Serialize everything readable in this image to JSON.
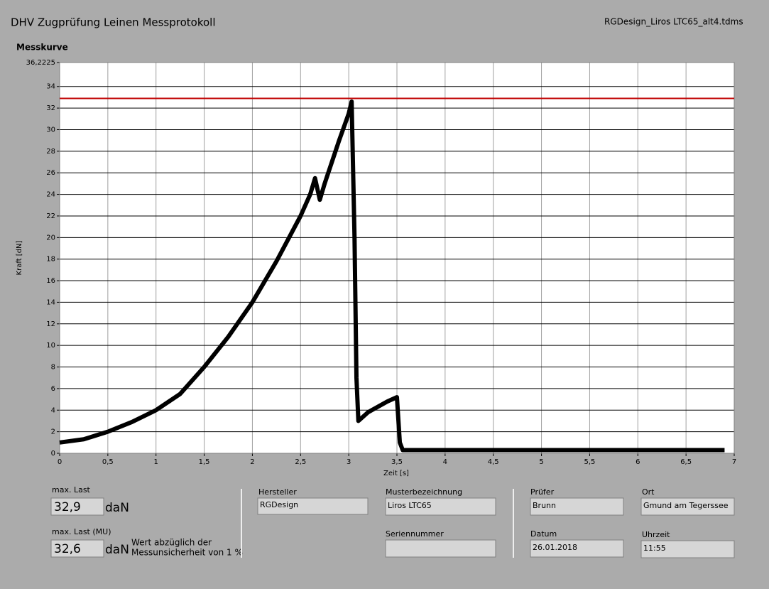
{
  "header": {
    "title": "DHV Zugprüfung Leinen Messprotokoll",
    "file": "RGDesign_Liros LTC65_alt4.tdms"
  },
  "chart_data": {
    "type": "line",
    "title": "Messkurve",
    "x_label": "Zeit [s]",
    "y_label": "Kraft [dN]",
    "xlim": [
      0,
      7
    ],
    "ylim": [
      0,
      36.2225
    ],
    "xticks": [
      0,
      {
        "value": 0.5,
        "label": "0,5"
      },
      1,
      {
        "value": 1.5,
        "label": "1,5"
      },
      2,
      {
        "value": 2.5,
        "label": "2,5"
      },
      3,
      {
        "value": 3.5,
        "label": "3,5"
      },
      4,
      {
        "value": 4.5,
        "label": "4,5"
      },
      5,
      {
        "value": 5.5,
        "label": "5,5"
      },
      6,
      {
        "value": 6.5,
        "label": "6,5"
      },
      7
    ],
    "yticks": [
      0,
      2,
      4,
      6,
      8,
      10,
      12,
      14,
      16,
      18,
      20,
      22,
      24,
      26,
      28,
      30,
      32,
      34,
      {
        "value": 36.2225,
        "label": "36,2225"
      }
    ],
    "grid": true,
    "series": [
      {
        "color": "#000000",
        "x": [
          0,
          0.25,
          0.5,
          0.75,
          1,
          1.25,
          1.5,
          1.75,
          2,
          2.25,
          2.5,
          2.6,
          2.65,
          2.7,
          2.75,
          2.9,
          3,
          3.03,
          3.06,
          3.08,
          3.1,
          3.2,
          3.4,
          3.5,
          3.53,
          3.56,
          4,
          5,
          6,
          6.9
        ],
        "values": [
          1,
          1.3,
          2,
          2.9,
          4,
          5.5,
          8,
          10.8,
          14,
          17.8,
          22,
          24,
          25.5,
          23.5,
          25,
          29,
          31.5,
          32.6,
          20,
          7,
          3,
          3.8,
          4.8,
          5.2,
          1,
          0.3,
          0.3,
          0.3,
          0.3,
          0.3
        ]
      },
      {
        "color": "#c00000",
        "x": [
          0,
          7
        ],
        "values": [
          32.9,
          32.9
        ]
      }
    ]
  },
  "results": {
    "max_label": "max. Last",
    "max_value": "32,9",
    "max_unit": "daN",
    "mu_label": "max. Last (MU)",
    "mu_value": "32,6",
    "mu_unit": "daN",
    "note_lines": [
      "Wert abzüglich der",
      "Messunsicherheit von 1 %"
    ]
  },
  "fields": {
    "hersteller_label": "Hersteller",
    "hersteller": "RGDesign",
    "muster_label": "Musterbezeichnung",
    "muster": "Liros LTC65",
    "serien_label": "Seriennummer",
    "pruefer_label": "Prüfer",
    "pruefer": "Brunn",
    "ort_label": "Ort",
    "ort": "Gmund am Tegerssee",
    "datum_label": "Datum",
    "datum": "26.01.2018",
    "uhrzeit_label": "Uhrzeit",
    "uhrzeit": "11:55"
  }
}
